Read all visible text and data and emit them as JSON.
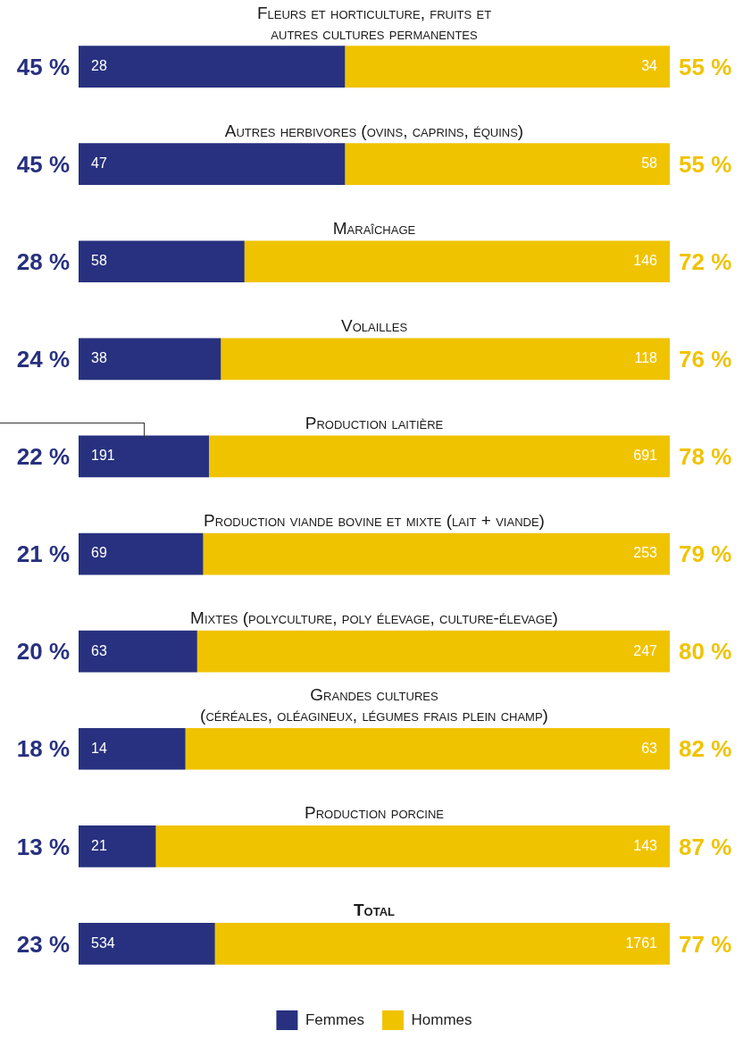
{
  "chart_data": {
    "type": "bar",
    "orientation": "horizontal",
    "stacked": true,
    "categories": [
      "Fleurs et horticulture, fruits et\nautres cultures permanentes",
      "Autres herbivores (ovins, caprins, équins)",
      "Maraîchage",
      "Volailles",
      "Production laitière",
      "Production viande bovine et mixte (lait + viande)",
      "Mixtes (polyculture, poly élevage, culture-élevage)",
      "Grandes cultures\n(céréales, oléagineux, légumes frais plein champ)",
      "Production porcine",
      "Total"
    ],
    "series": [
      {
        "name": "Femmes",
        "color": "#27317f",
        "values": [
          45,
          45,
          28,
          24,
          22,
          21,
          20,
          18,
          13,
          23
        ],
        "value_labels": [
          "45 %",
          "45 %",
          "28 %",
          "24 %",
          "22 %",
          "21 %",
          "20 %",
          "18 %",
          "13 %",
          "23 %"
        ]
      },
      {
        "name": "Hommes",
        "color": "#f0c300",
        "values": [
          55,
          55,
          72,
          76,
          78,
          79,
          80,
          82,
          87,
          77
        ],
        "value_labels": [
          "55 %",
          "55 %",
          "72 %",
          "76 %",
          "78 %",
          "79 %",
          "80 %",
          "82 %",
          "87 %",
          "77 %"
        ]
      }
    ],
    "tick_labels": false,
    "legend": "bottom",
    "annotations": [
      "28",
      "34",
      "47",
      "58",
      "58",
      "146",
      "38",
      "118",
      "191",
      "691",
      "69",
      "253",
      "63",
      "247",
      "14",
      "63",
      "21",
      "143",
      "534",
      "1761"
    ]
  }
}
